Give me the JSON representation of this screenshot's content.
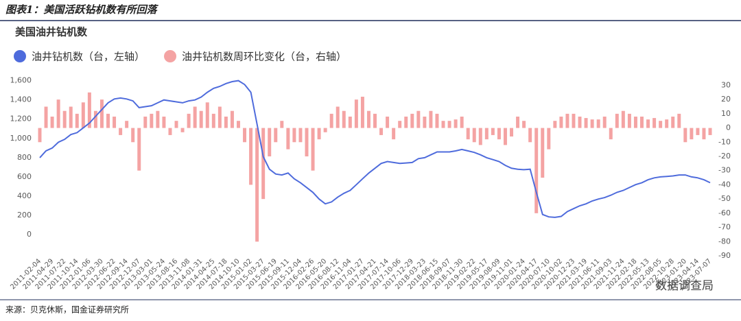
{
  "chart_data": {
    "type": "bar-line",
    "title": "图表1：美国活跃钻机数有所回落",
    "subtitle": "美国油井钻机数",
    "source": "来源：贝克休斯，国金证券研究所",
    "badge": "数据调查局",
    "categories": [
      "2011-02-04",
      null,
      "2011-04-29",
      null,
      "2011-07-22",
      null,
      "2011-10-14",
      null,
      "2012-01-06",
      null,
      "2012-03-30",
      null,
      "2012-06-22",
      null,
      "2012-09-14",
      null,
      "2012-12-07",
      null,
      "2013-03-01",
      null,
      "2013-05-24",
      null,
      "2013-08-16",
      null,
      "2013-11-08",
      null,
      "2014-01-31",
      null,
      "2014-04-25",
      null,
      "2014-07-18",
      null,
      "2014-10-10",
      null,
      "2015-01-02",
      null,
      "2015-03-27",
      null,
      "2015-06-19",
      null,
      "2015-09-11",
      null,
      "2015-12-04",
      null,
      "2016-02-26",
      null,
      "2016-05-20",
      null,
      "2016-08-12",
      null,
      "2016-11-04",
      null,
      "2017-01-27",
      null,
      "2017-04-21",
      null,
      "2017-07-14",
      null,
      "2017-10-06",
      null,
      "2017-12-29",
      null,
      "2018-03-23",
      null,
      "2018-06-15",
      null,
      "2018-09-07",
      null,
      "2018-11-30",
      null,
      "2019-02-22",
      null,
      "2019-05-17",
      null,
      "2019-08-09",
      null,
      "2019-11-01",
      null,
      "2020-01-24",
      null,
      "2020-04-17",
      null,
      "2020-07-10",
      null,
      "2020-10-02",
      null,
      "2020-12-23",
      null,
      "2021-03-19",
      null,
      "2021-06-11",
      null,
      "2021-09-03",
      null,
      "2021-11-24",
      null,
      "2022-02-18",
      null,
      "2022-05-13",
      null,
      "2022-08-05",
      null,
      "2022-10-28",
      null,
      "2023-01-20",
      null,
      "2023-04-14",
      null,
      "2023-07-07"
    ],
    "series": [
      {
        "name": "油井钻机数（台，左轴）",
        "color": "#4e6bdc",
        "kind": "line",
        "values": [
          800,
          870,
          900,
          960,
          990,
          1040,
          1060,
          1110,
          1160,
          1230,
          1300,
          1370,
          1410,
          1420,
          1410,
          1390,
          1320,
          1330,
          1340,
          1370,
          1400,
          1390,
          1380,
          1370,
          1390,
          1400,
          1430,
          1480,
          1520,
          1540,
          1570,
          1590,
          1600,
          1560,
          1480,
          1150,
          810,
          680,
          630,
          620,
          640,
          580,
          540,
          490,
          440,
          370,
          320,
          340,
          390,
          430,
          460,
          520,
          580,
          640,
          690,
          740,
          760,
          750,
          740,
          745,
          750,
          790,
          800,
          830,
          860,
          860,
          860,
          870,
          885,
          870,
          855,
          830,
          800,
          780,
          760,
          720,
          690,
          680,
          675,
          680,
          440,
          210,
          185,
          180,
          190,
          240,
          270,
          300,
          320,
          350,
          370,
          385,
          410,
          440,
          460,
          490,
          520,
          540,
          570,
          590,
          600,
          605,
          610,
          620,
          620,
          600,
          590,
          570,
          540
        ]
      },
      {
        "name": "油井钻机数周环比变化（台，右轴）",
        "color": "#f4a3a3",
        "kind": "bar",
        "axis": "y2",
        "values": [
          -10,
          15,
          8,
          20,
          12,
          15,
          10,
          18,
          25,
          12,
          20,
          10,
          8,
          -5,
          5,
          -10,
          -30,
          8,
          10,
          12,
          8,
          -5,
          5,
          -3,
          10,
          15,
          12,
          18,
          10,
          15,
          8,
          12,
          5,
          -10,
          -40,
          -80,
          -50,
          -20,
          -10,
          5,
          -15,
          -10,
          -10,
          -20,
          -30,
          -8,
          -3,
          10,
          15,
          12,
          8,
          20,
          22,
          12,
          10,
          -5,
          8,
          -8,
          5,
          8,
          10,
          12,
          8,
          12,
          10,
          5,
          5,
          6,
          8,
          -8,
          -10,
          -12,
          -8,
          -5,
          -8,
          -12,
          -6,
          8,
          5,
          -10,
          -60,
          -35,
          -15,
          5,
          8,
          10,
          10,
          8,
          7,
          6,
          6,
          8,
          -8,
          10,
          12,
          10,
          8,
          8,
          6,
          7,
          5,
          6,
          8,
          10,
          -10,
          -8,
          -5,
          -8,
          -5
        ]
      }
    ],
    "ylim": [
      -220,
      1640
    ],
    "yticks": [
      0,
      200,
      400,
      600,
      800,
      {
        "value": 1000,
        "label": "1,000"
      },
      {
        "value": 1200,
        "label": "1,200"
      },
      {
        "value": 1400,
        "label": "1,400"
      },
      {
        "value": 1600,
        "label": "1,600"
      }
    ],
    "y2lim": [
      -90,
      36
    ],
    "y2ticks": [
      30,
      20,
      10,
      0,
      -10,
      -20,
      -30,
      -40,
      -50,
      -60,
      -70,
      -80,
      -90
    ],
    "legend": "top-left"
  }
}
